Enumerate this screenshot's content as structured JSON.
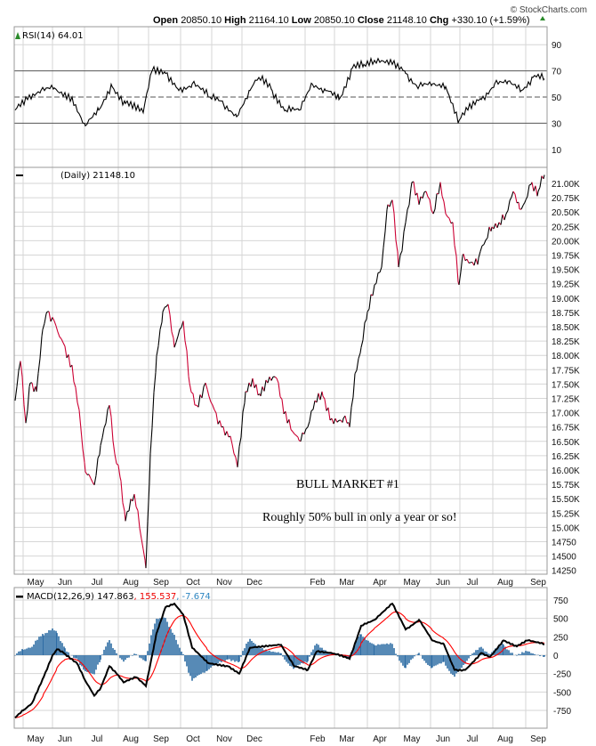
{
  "header": {
    "watermark": "© StockCharts.com",
    "open_label": "Open",
    "open": "20850.10",
    "high_label": "High",
    "high": "21164.10",
    "low_label": "Low",
    "low": "20850.10",
    "close_label": "Close",
    "close": "21148.10",
    "chg_label": "Chg",
    "chg": "+330.10 (+1.59%)"
  },
  "rsi_panel": {
    "label": "RSI(14) 64.01",
    "ticks": [
      "90",
      "70",
      "50",
      "30",
      "10"
    ]
  },
  "price_panel": {
    "label": "(Daily) 21148.10",
    "ticks": [
      "21.00K",
      "20.75K",
      "20.50K",
      "20.25K",
      "20.00K",
      "19.75K",
      "19.50K",
      "19.25K",
      "19.00K",
      "18.75K",
      "18.50K",
      "18.25K",
      "18.00K",
      "17.75K",
      "17.50K",
      "17.25K",
      "17.00K",
      "16.75K",
      "16.50K",
      "16.25K",
      "16.00K",
      "15.75K",
      "15.50K",
      "15.25K",
      "15.00K",
      "14750",
      "14500",
      "14250"
    ]
  },
  "annotations": {
    "title": "BULL MARKET #1",
    "note": "Roughly 50% bull in only a year or so!"
  },
  "macd_panel": {
    "label": "MACD(12,26,9) 147.863",
    "signal": ", 155.537",
    "hist": ", -7.674",
    "ticks": [
      "750",
      "500",
      "250",
      "0",
      "-250",
      "-500",
      "-750"
    ]
  },
  "months": [
    "May",
    "Jun",
    "Jul",
    "Aug",
    "Sep",
    "Oct",
    "Nov",
    "Dec",
    "Feb",
    "Mar",
    "Apr",
    "May",
    "Jun",
    "Jul",
    "Aug",
    "Sep"
  ],
  "colors": {
    "up": "#000000",
    "down": "#cc0033",
    "signal": "#ff0000",
    "hist": "#2e6da4",
    "grid": "#d6d6d6"
  },
  "chart_data": [
    {
      "type": "line",
      "title": "RSI(14)",
      "ylim": [
        0,
        100
      ],
      "reference_lines": [
        30,
        50,
        70
      ],
      "points": [
        [
          0,
          40
        ],
        [
          14,
          48
        ],
        [
          29,
          55
        ],
        [
          44,
          57
        ],
        [
          64,
          50
        ],
        [
          79,
          28
        ],
        [
          94,
          40
        ],
        [
          109,
          58
        ],
        [
          124,
          45
        ],
        [
          144,
          38
        ],
        [
          154,
          70
        ],
        [
          169,
          68
        ],
        [
          184,
          55
        ],
        [
          199,
          60
        ],
        [
          219,
          50
        ],
        [
          234,
          45
        ],
        [
          249,
          35
        ],
        [
          264,
          55
        ],
        [
          274,
          65
        ],
        [
          289,
          55
        ],
        [
          304,
          40
        ],
        [
          319,
          40
        ],
        [
          334,
          60
        ],
        [
          349,
          55
        ],
        [
          364,
          48
        ],
        [
          379,
          72
        ],
        [
          392,
          75
        ],
        [
          404,
          78
        ],
        [
          424,
          75
        ],
        [
          439,
          68
        ],
        [
          454,
          58
        ],
        [
          469,
          60
        ],
        [
          484,
          58
        ],
        [
          499,
          32
        ],
        [
          509,
          40
        ],
        [
          524,
          48
        ],
        [
          539,
          60
        ],
        [
          554,
          62
        ],
        [
          569,
          55
        ],
        [
          582,
          65
        ],
        [
          595,
          64
        ]
      ]
    },
    {
      "type": "line",
      "title": "Daily close",
      "ylim": [
        14250,
        21250
      ],
      "points": [
        [
          0,
          17210
        ],
        [
          6,
          17900
        ],
        [
          12,
          16820
        ],
        [
          17,
          17520
        ],
        [
          24,
          17370
        ],
        [
          31,
          18450
        ],
        [
          36,
          18760
        ],
        [
          44,
          18600
        ],
        [
          54,
          18220
        ],
        [
          64,
          17830
        ],
        [
          72,
          17050
        ],
        [
          79,
          15970
        ],
        [
          89,
          15740
        ],
        [
          96,
          16430
        ],
        [
          106,
          17130
        ],
        [
          112,
          16280
        ],
        [
          119,
          15810
        ],
        [
          124,
          15110
        ],
        [
          134,
          15580
        ],
        [
          142,
          14800
        ],
        [
          147,
          14290
        ],
        [
          152,
          16280
        ],
        [
          159,
          17990
        ],
        [
          166,
          18760
        ],
        [
          172,
          18890
        ],
        [
          179,
          18140
        ],
        [
          189,
          18600
        ],
        [
          196,
          17520
        ],
        [
          204,
          17130
        ],
        [
          214,
          17520
        ],
        [
          224,
          17050
        ],
        [
          232,
          16750
        ],
        [
          242,
          16590
        ],
        [
          250,
          16050
        ],
        [
          259,
          17370
        ],
        [
          267,
          17600
        ],
        [
          276,
          17290
        ],
        [
          284,
          17520
        ],
        [
          294,
          17600
        ],
        [
          302,
          16980
        ],
        [
          312,
          16670
        ],
        [
          319,
          16520
        ],
        [
          329,
          16750
        ],
        [
          337,
          17210
        ],
        [
          346,
          17290
        ],
        [
          356,
          16900
        ],
        [
          369,
          16900
        ],
        [
          376,
          16750
        ],
        [
          382,
          17680
        ],
        [
          389,
          18140
        ],
        [
          396,
          18760
        ],
        [
          404,
          19230
        ],
        [
          412,
          19540
        ],
        [
          419,
          20630
        ],
        [
          424,
          20710
        ],
        [
          431,
          19540
        ],
        [
          439,
          20320
        ],
        [
          446,
          21020
        ],
        [
          454,
          20630
        ],
        [
          462,
          20860
        ],
        [
          470,
          20470
        ],
        [
          478,
          21020
        ],
        [
          484,
          20470
        ],
        [
          492,
          20320
        ],
        [
          499,
          19230
        ],
        [
          504,
          19770
        ],
        [
          512,
          19620
        ],
        [
          521,
          19700
        ],
        [
          529,
          20010
        ],
        [
          536,
          20240
        ],
        [
          544,
          20320
        ],
        [
          552,
          20470
        ],
        [
          560,
          20860
        ],
        [
          567,
          20550
        ],
        [
          574,
          20710
        ],
        [
          581,
          21020
        ],
        [
          588,
          20860
        ],
        [
          595,
          21148
        ]
      ]
    },
    {
      "type": "line",
      "title": "MACD(12,26,9)",
      "ylim": [
        -900,
        850
      ],
      "points": [
        [
          0,
          -850
        ],
        [
          9,
          -750
        ],
        [
          19,
          -650
        ],
        [
          32,
          -300
        ],
        [
          42,
          0
        ],
        [
          47,
          80
        ],
        [
          56,
          20
        ],
        [
          69,
          -100
        ],
        [
          79,
          -350
        ],
        [
          89,
          -550
        ],
        [
          96,
          -450
        ],
        [
          106,
          -150
        ],
        [
          114,
          -250
        ],
        [
          122,
          -370
        ],
        [
          136,
          -300
        ],
        [
          147,
          -420
        ],
        [
          159,
          300
        ],
        [
          169,
          650
        ],
        [
          179,
          700
        ],
        [
          189,
          550
        ],
        [
          199,
          100
        ],
        [
          216,
          -100
        ],
        [
          239,
          -150
        ],
        [
          252,
          -250
        ],
        [
          264,
          100
        ],
        [
          284,
          120
        ],
        [
          299,
          140
        ],
        [
          314,
          -150
        ],
        [
          329,
          -200
        ],
        [
          339,
          50
        ],
        [
          359,
          20
        ],
        [
          376,
          -50
        ],
        [
          389,
          400
        ],
        [
          404,
          480
        ],
        [
          424,
          700
        ],
        [
          439,
          350
        ],
        [
          454,
          480
        ],
        [
          469,
          200
        ],
        [
          482,
          150
        ],
        [
          494,
          -200
        ],
        [
          506,
          -200
        ],
        [
          524,
          30
        ],
        [
          534,
          -20
        ],
        [
          549,
          200
        ],
        [
          564,
          120
        ],
        [
          576,
          200
        ],
        [
          595,
          148
        ]
      ]
    }
  ]
}
